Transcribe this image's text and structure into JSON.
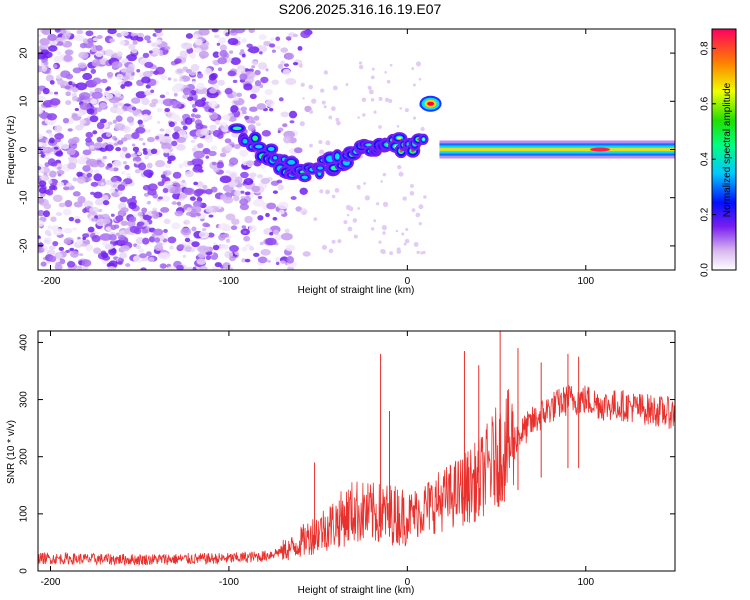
{
  "title": "S206.2025.316.16.19.E07",
  "chart_data": [
    {
      "type": "heatmap",
      "xlabel": "Height of straight line (km)",
      "ylabel": "Frequency (Hz)",
      "xlim": [
        -207,
        150
      ],
      "ylim": [
        -25,
        25
      ],
      "xticks": [
        -200,
        -100,
        0,
        100
      ],
      "yticks": [
        -20,
        -10,
        0,
        10,
        20
      ],
      "colorbar": {
        "label": "Normalized spectral amplitude",
        "range": [
          0.0,
          0.87
        ],
        "ticks": [
          "0.0",
          "0.2",
          "0.4",
          "0.6",
          "0.8"
        ],
        "tick_values": [
          0.0,
          0.2,
          0.4,
          0.6,
          0.8
        ]
      },
      "features": {
        "noise_region_km": [
          -207,
          -55
        ],
        "signal_track": [
          {
            "x": -95,
            "y": 4
          },
          {
            "x": -80,
            "y": 0
          },
          {
            "x": -70,
            "y": -3
          },
          {
            "x": -60,
            "y": -5
          },
          {
            "x": -50,
            "y": -4
          },
          {
            "x": -40,
            "y": -3
          },
          {
            "x": -30,
            "y": -1
          },
          {
            "x": -20,
            "y": 0
          },
          {
            "x": -10,
            "y": 1
          },
          {
            "x": 0,
            "y": 1
          },
          {
            "x": 10,
            "y": 1
          }
        ],
        "blob": {
          "x": 13,
          "y": 9.5,
          "amplitude": 0.87
        },
        "constant_line": {
          "x_start": 18,
          "x_end": 150,
          "y": 0,
          "amplitude": 0.55,
          "peak": {
            "x": 108,
            "amplitude": 0.87
          }
        }
      }
    },
    {
      "type": "line",
      "xlabel": "Height of straight line (km)",
      "ylabel": "SNR (10 * v/v)",
      "xlim": [
        -207,
        150
      ],
      "ylim": [
        0,
        420
      ],
      "xticks": [
        -200,
        -100,
        0,
        100
      ],
      "yticks": [
        0,
        100,
        200,
        300,
        400
      ],
      "series": [
        {
          "name": "SNR",
          "color": "#e8302c",
          "baseline": [
            {
              "x": -207,
              "y": 22
            },
            {
              "x": -150,
              "y": 20
            },
            {
              "x": -100,
              "y": 22
            },
            {
              "x": -80,
              "y": 26
            },
            {
              "x": -65,
              "y": 40
            },
            {
              "x": -55,
              "y": 60
            },
            {
              "x": -40,
              "y": 85
            },
            {
              "x": -30,
              "y": 105
            },
            {
              "x": -20,
              "y": 100
            },
            {
              "x": -10,
              "y": 100
            },
            {
              "x": 0,
              "y": 95
            },
            {
              "x": 10,
              "y": 110
            },
            {
              "x": 20,
              "y": 125
            },
            {
              "x": 30,
              "y": 140
            },
            {
              "x": 40,
              "y": 160
            },
            {
              "x": 50,
              "y": 200
            },
            {
              "x": 60,
              "y": 230
            },
            {
              "x": 70,
              "y": 260
            },
            {
              "x": 80,
              "y": 285
            },
            {
              "x": 90,
              "y": 300
            },
            {
              "x": 100,
              "y": 300
            },
            {
              "x": 110,
              "y": 290
            },
            {
              "x": 120,
              "y": 290
            },
            {
              "x": 130,
              "y": 285
            },
            {
              "x": 140,
              "y": 280
            },
            {
              "x": 150,
              "y": 275
            }
          ],
          "spikes": [
            {
              "x": -52,
              "y": 190
            },
            {
              "x": -15,
              "y": 380
            },
            {
              "x": -10,
              "y": 280
            },
            {
              "x": 32,
              "y": 385
            },
            {
              "x": 40,
              "y": 360
            },
            {
              "x": 52,
              "y": 420
            },
            {
              "x": 62,
              "y": 390
            },
            {
              "x": 75,
              "y": 365
            },
            {
              "x": 90,
              "y": 380
            },
            {
              "x": 96,
              "y": 375
            }
          ]
        }
      ]
    }
  ]
}
